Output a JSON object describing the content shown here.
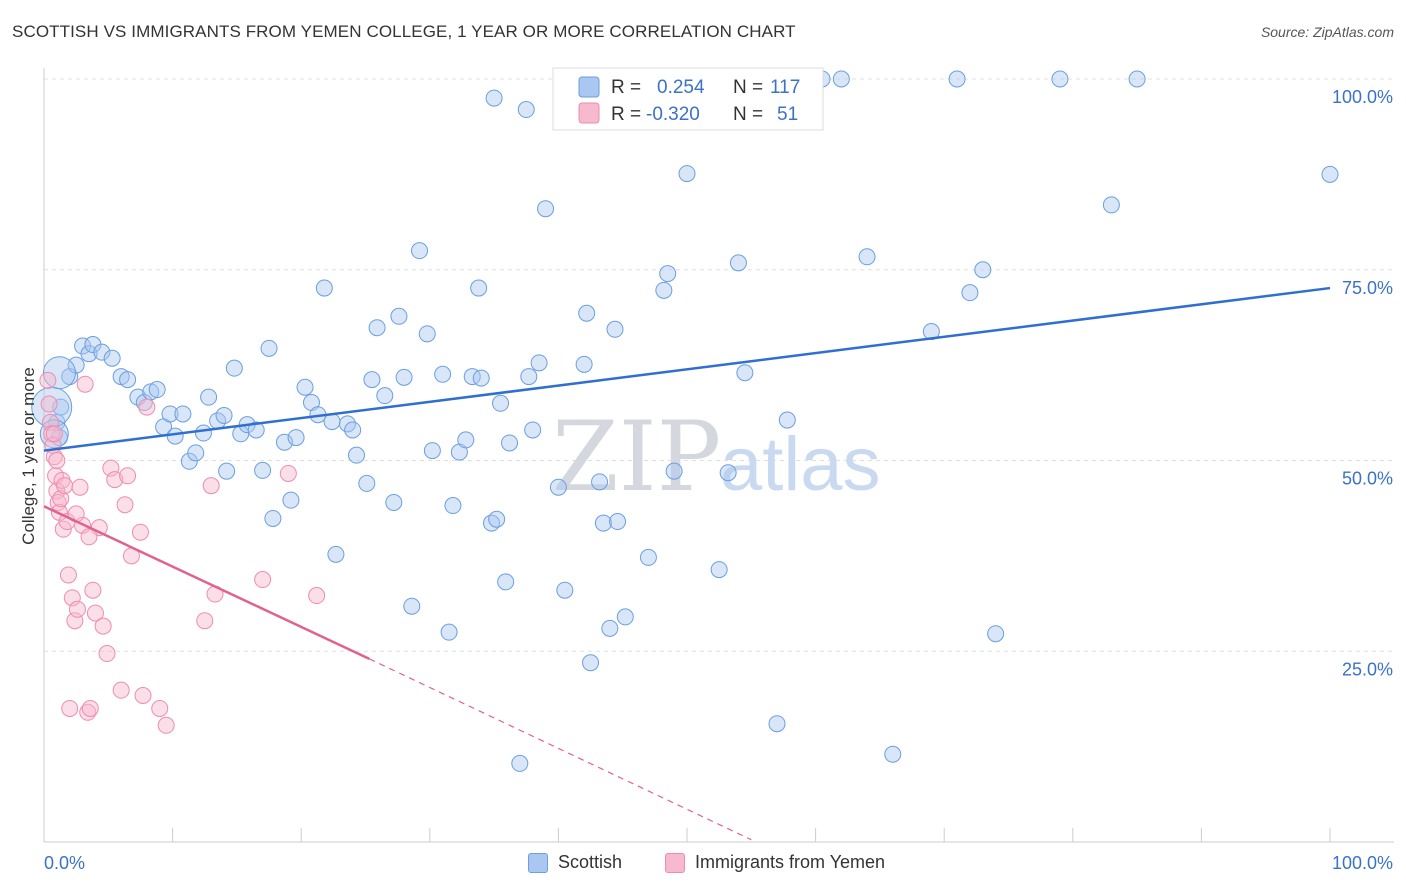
{
  "title": "SCOTTISH VS IMMIGRANTS FROM YEMEN COLLEGE, 1 YEAR OR MORE CORRELATION CHART",
  "source": "Source: ZipAtlas.com",
  "watermark": {
    "zip": "ZIP",
    "atlas": "atlas"
  },
  "colors": {
    "blue": "#6a9fe0",
    "blue_line": "#2f6fd0",
    "pink": "#f08bb0",
    "pink_line": "#e0628f",
    "label_blue": "#3a72c8"
  },
  "legend_top": [
    {
      "swatch_color": "#a9c7f0",
      "r_label": "R =",
      "r_value": "0.254",
      "n_label": "N =",
      "n_value": "117"
    },
    {
      "swatch_color": "#f6b9cd",
      "r_label": "R =",
      "r_value": "-0.320",
      "n_label": "N =",
      "n_value": "51"
    }
  ],
  "legend_bottom": [
    {
      "label": "Scottish",
      "color": "#a9c7f0"
    },
    {
      "label": "Immigrants from Yemen",
      "color": "#f6b9cd"
    }
  ],
  "chart_data": {
    "type": "scatter",
    "title": "SCOTTISH VS IMMIGRANTS FROM YEMEN COLLEGE, 1 YEAR OR MORE CORRELATION CHART",
    "xlabel": "",
    "ylabel": "College, 1 year or more",
    "xlim": [
      0,
      100
    ],
    "ylim": [
      0,
      100
    ],
    "x_tick_labels": [
      "0.0%",
      "100.0%"
    ],
    "y_tick_labels": [
      "25.0%",
      "50.0%",
      "75.0%",
      "100.0%"
    ],
    "y_ticks": [
      25,
      50,
      75,
      100
    ],
    "series": [
      {
        "name": "Scottish",
        "R": 0.254,
        "N": 117,
        "trend": {
          "x": [
            0,
            100
          ],
          "y": [
            51.3,
            72.6
          ],
          "style": "solid"
        },
        "points": [
          [
            1.0,
            55.0
          ],
          [
            1.2,
            53.0
          ],
          [
            1.3,
            57.0
          ],
          [
            2.0,
            61.0
          ],
          [
            2.5,
            62.5
          ],
          [
            3.0,
            65.0
          ],
          [
            3.5,
            64.0
          ],
          [
            3.8,
            65.2
          ],
          [
            4.5,
            64.2
          ],
          [
            5.3,
            63.4
          ],
          [
            6.0,
            61.0
          ],
          [
            6.5,
            60.6
          ],
          [
            7.3,
            58.3
          ],
          [
            7.8,
            57.6
          ],
          [
            8.3,
            59.0
          ],
          [
            8.8,
            59.3
          ],
          [
            9.3,
            54.4
          ],
          [
            9.8,
            56.1
          ],
          [
            10.2,
            53.2
          ],
          [
            10.8,
            56.1
          ],
          [
            11.3,
            49.9
          ],
          [
            11.8,
            51.0
          ],
          [
            12.4,
            53.6
          ],
          [
            12.8,
            58.3
          ],
          [
            13.5,
            55.2
          ],
          [
            14.0,
            55.9
          ],
          [
            14.2,
            48.6
          ],
          [
            14.8,
            62.1
          ],
          [
            15.3,
            53.5
          ],
          [
            15.8,
            54.7
          ],
          [
            16.5,
            54.0
          ],
          [
            17.0,
            48.7
          ],
          [
            17.5,
            64.7
          ],
          [
            17.8,
            42.4
          ],
          [
            18.7,
            52.4
          ],
          [
            19.2,
            44.8
          ],
          [
            19.6,
            53.0
          ],
          [
            20.3,
            59.6
          ],
          [
            20.8,
            57.6
          ],
          [
            21.3,
            56.0
          ],
          [
            21.8,
            72.6
          ],
          [
            22.4,
            55.1
          ],
          [
            22.7,
            37.7
          ],
          [
            23.6,
            54.8
          ],
          [
            24.0,
            54.0
          ],
          [
            24.3,
            50.7
          ],
          [
            25.1,
            47.0
          ],
          [
            25.5,
            60.6
          ],
          [
            25.9,
            67.4
          ],
          [
            26.5,
            58.5
          ],
          [
            27.2,
            44.5
          ],
          [
            27.6,
            68.9
          ],
          [
            28.0,
            60.9
          ],
          [
            28.6,
            30.9
          ],
          [
            29.2,
            77.5
          ],
          [
            29.8,
            66.6
          ],
          [
            30.2,
            51.3
          ],
          [
            31.0,
            61.3
          ],
          [
            31.5,
            27.5
          ],
          [
            31.8,
            44.1
          ],
          [
            32.3,
            51.1
          ],
          [
            32.8,
            52.7
          ],
          [
            33.3,
            61.0
          ],
          [
            33.8,
            72.6
          ],
          [
            34.0,
            60.8
          ],
          [
            34.8,
            41.8
          ],
          [
            35.2,
            42.3
          ],
          [
            35.5,
            57.5
          ],
          [
            35.9,
            34.1
          ],
          [
            36.2,
            52.3
          ],
          [
            37.0,
            10.3
          ],
          [
            37.7,
            61.0
          ],
          [
            38.0,
            54.0
          ],
          [
            38.5,
            62.8
          ],
          [
            39.0,
            83.0
          ],
          [
            40.0,
            46.5
          ],
          [
            40.5,
            33.0
          ],
          [
            41.0,
            94.5
          ],
          [
            42.0,
            62.6
          ],
          [
            42.2,
            69.3
          ],
          [
            42.5,
            23.5
          ],
          [
            43.2,
            47.2
          ],
          [
            43.5,
            41.8
          ],
          [
            44.0,
            28.0
          ],
          [
            44.4,
            67.2
          ],
          [
            44.6,
            42.0
          ],
          [
            45.2,
            29.5
          ],
          [
            47.0,
            37.3
          ],
          [
            48.2,
            72.3
          ],
          [
            48.5,
            74.5
          ],
          [
            49.0,
            48.6
          ],
          [
            50.0,
            87.6
          ],
          [
            51.0,
            98.0
          ],
          [
            52.5,
            35.7
          ],
          [
            53.2,
            48.4
          ],
          [
            54.0,
            75.9
          ],
          [
            54.5,
            61.5
          ],
          [
            55.0,
            95.0
          ],
          [
            57.0,
            15.5
          ],
          [
            57.8,
            55.3
          ],
          [
            59.0,
            100.0
          ],
          [
            62.0,
            100.0
          ],
          [
            64.0,
            76.7
          ],
          [
            66.0,
            11.5
          ],
          [
            69.0,
            66.9
          ],
          [
            71.0,
            100.0
          ],
          [
            72.0,
            72.0
          ],
          [
            73.0,
            75.0
          ],
          [
            74.0,
            27.3
          ],
          [
            79.0,
            100.0
          ],
          [
            83.0,
            83.5
          ],
          [
            85.0,
            100.0
          ],
          [
            100.0,
            87.5
          ],
          [
            55.5,
            96.0
          ],
          [
            37.5,
            96.0
          ],
          [
            45.0,
            99.0
          ],
          [
            60.5,
            100.0
          ],
          [
            35.0,
            97.5
          ]
        ]
      },
      {
        "name": "Immigrants from Yemen",
        "R": -0.32,
        "N": 51,
        "trend": {
          "x": [
            0,
            25.3,
            55.0
          ],
          "y": [
            44.0,
            24.0,
            0.3
          ],
          "style": "solid-then-dashed"
        },
        "points": [
          [
            0.3,
            60.5
          ],
          [
            0.4,
            57.4
          ],
          [
            0.5,
            55.0
          ],
          [
            0.6,
            53.5
          ],
          [
            0.7,
            52.0
          ],
          [
            0.8,
            50.5
          ],
          [
            0.9,
            48.0
          ],
          [
            1.0,
            46.0
          ],
          [
            1.1,
            44.5
          ],
          [
            1.2,
            43.2
          ],
          [
            1.3,
            45.0
          ],
          [
            1.4,
            47.4
          ],
          [
            1.5,
            41.0
          ],
          [
            1.6,
            46.7
          ],
          [
            1.8,
            42.0
          ],
          [
            1.9,
            35.0
          ],
          [
            2.0,
            17.5
          ],
          [
            2.2,
            32.0
          ],
          [
            2.4,
            29.0
          ],
          [
            2.6,
            30.5
          ],
          [
            2.8,
            46.5
          ],
          [
            3.0,
            41.5
          ],
          [
            3.2,
            60.0
          ],
          [
            3.4,
            17.0
          ],
          [
            3.6,
            17.5
          ],
          [
            3.8,
            33.0
          ],
          [
            4.0,
            30.0
          ],
          [
            4.3,
            41.2
          ],
          [
            4.6,
            28.3
          ],
          [
            4.9,
            24.7
          ],
          [
            5.2,
            49.0
          ],
          [
            5.5,
            47.5
          ],
          [
            6.0,
            19.9
          ],
          [
            6.3,
            44.2
          ],
          [
            6.8,
            37.5
          ],
          [
            7.5,
            40.6
          ],
          [
            7.7,
            19.2
          ],
          [
            8.0,
            57.0
          ],
          [
            9.0,
            17.5
          ],
          [
            9.5,
            15.3
          ],
          [
            12.5,
            29.0
          ],
          [
            13.0,
            46.7
          ],
          [
            13.3,
            32.5
          ],
          [
            17.0,
            34.4
          ],
          [
            19.0,
            48.3
          ],
          [
            21.2,
            32.3
          ],
          [
            1.0,
            50.0
          ],
          [
            2.5,
            43.0
          ],
          [
            0.8,
            53.5
          ],
          [
            3.5,
            40.0
          ],
          [
            6.5,
            48.0
          ]
        ]
      }
    ]
  }
}
